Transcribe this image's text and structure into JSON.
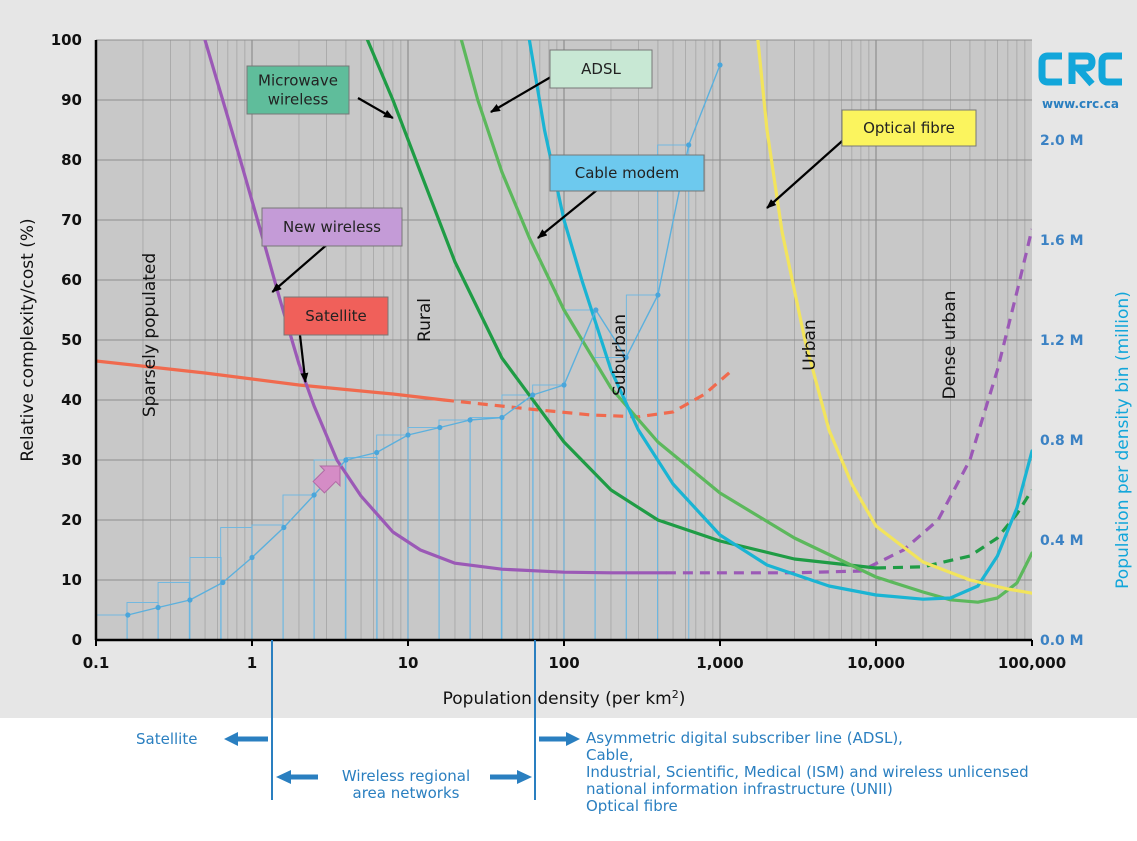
{
  "chart_data": {
    "type": "line",
    "xlabel": "Population density (per km²)",
    "ylabel": "Relative complexity/cost (%)",
    "y2label": "Population per density bin (million)",
    "x_scale": "log",
    "xlim": [
      0.1,
      100000
    ],
    "ylim": [
      0,
      100
    ],
    "y2lim": [
      0,
      2.4
    ],
    "x_ticks": [
      "0.1",
      "1",
      "10",
      "100",
      "1,000",
      "10,000",
      "100,000"
    ],
    "y_ticks": [
      "0",
      "10",
      "20",
      "30",
      "40",
      "50",
      "60",
      "70",
      "80",
      "90",
      "100"
    ],
    "y2_ticks": [
      "0.0 M",
      "0.4 M",
      "0.8 M",
      "1.2 M",
      "1.6 M",
      "2.0 M"
    ],
    "grid": true,
    "zones": [
      "Sparsely populated",
      "Rural",
      "Suburban",
      "Urban",
      "Dense urban"
    ],
    "series": [
      {
        "name": "Satellite",
        "color": "#f06a4e",
        "points": [
          [
            0.1,
            46.5
          ],
          [
            0.5,
            44.5
          ],
          [
            2,
            42.5
          ],
          [
            8,
            41
          ],
          [
            17,
            40
          ]
        ],
        "dashed_points": [
          [
            17,
            40
          ],
          [
            60,
            38.5
          ],
          [
            150,
            37.5
          ],
          [
            300,
            37.2
          ],
          [
            500,
            38
          ],
          [
            800,
            41
          ],
          [
            1200,
            45
          ]
        ]
      },
      {
        "name": "New wireless",
        "color": "#9b59b6",
        "points": [
          [
            0.5,
            100
          ],
          [
            0.8,
            82
          ],
          [
            1.2,
            66
          ],
          [
            1.5,
            57
          ],
          [
            2,
            46
          ],
          [
            2.5,
            39
          ],
          [
            3.5,
            30
          ],
          [
            5,
            24
          ],
          [
            8,
            18
          ],
          [
            12,
            15
          ],
          [
            20,
            12.8
          ],
          [
            40,
            11.8
          ],
          [
            100,
            11.3
          ],
          [
            200,
            11.2
          ],
          [
            450,
            11.2
          ]
        ],
        "dashed_points": [
          [
            450,
            11.2
          ],
          [
            1000,
            11.2
          ],
          [
            3000,
            11.2
          ],
          [
            8000,
            11.5
          ],
          [
            15000,
            15
          ],
          [
            25000,
            20
          ],
          [
            40000,
            30
          ],
          [
            60000,
            45
          ],
          [
            80000,
            58
          ],
          [
            100000,
            68.5
          ]
        ]
      },
      {
        "name": "Microwave wireless",
        "color": "#1f9c45",
        "points": [
          [
            5.5,
            100
          ],
          [
            8,
            90
          ],
          [
            12,
            78
          ],
          [
            20,
            63
          ],
          [
            40,
            47
          ],
          [
            100,
            33
          ],
          [
            200,
            25
          ],
          [
            400,
            20
          ],
          [
            1000,
            16.5
          ],
          [
            3000,
            13.5
          ],
          [
            10000,
            12
          ]
        ],
        "dashed_points": [
          [
            10000,
            12
          ],
          [
            20000,
            12.2
          ],
          [
            40000,
            14
          ],
          [
            60000,
            17
          ],
          [
            80000,
            21
          ],
          [
            100000,
            25
          ]
        ]
      },
      {
        "name": "ADSL",
        "color": "#5cb85c",
        "points": [
          [
            22,
            100
          ],
          [
            28,
            90
          ],
          [
            40,
            78
          ],
          [
            60,
            67
          ],
          [
            100,
            55
          ],
          [
            200,
            42
          ],
          [
            400,
            33
          ],
          [
            1000,
            24.5
          ],
          [
            3000,
            17
          ],
          [
            10000,
            10.5
          ],
          [
            20000,
            8
          ],
          [
            30000,
            6.7
          ],
          [
            45000,
            6.3
          ],
          [
            60000,
            7
          ],
          [
            80000,
            9.5
          ],
          [
            100000,
            14.5
          ]
        ]
      },
      {
        "name": "Cable modem",
        "color": "#1ab4d3",
        "points": [
          [
            60,
            100
          ],
          [
            75,
            85
          ],
          [
            100,
            70
          ],
          [
            130,
            60
          ],
          [
            200,
            45
          ],
          [
            300,
            35
          ],
          [
            500,
            26
          ],
          [
            1000,
            17.5
          ],
          [
            2000,
            12.5
          ],
          [
            5000,
            9
          ],
          [
            10000,
            7.5
          ],
          [
            20000,
            6.8
          ],
          [
            30000,
            7
          ],
          [
            45000,
            9
          ],
          [
            60000,
            14
          ],
          [
            80000,
            22
          ],
          [
            100000,
            31.5
          ]
        ]
      },
      {
        "name": "Optical fibre",
        "color": "#f2e45c",
        "points": [
          [
            1750,
            100
          ],
          [
            2000,
            85
          ],
          [
            2500,
            68
          ],
          [
            3500,
            50
          ],
          [
            5000,
            35
          ],
          [
            7000,
            26
          ],
          [
            10000,
            19
          ],
          [
            20000,
            13
          ],
          [
            40000,
            10
          ],
          [
            70000,
            8.5
          ],
          [
            100000,
            7.8
          ]
        ]
      },
      {
        "name": "Population per density bin",
        "color": "#5bb0dd",
        "axis": "right",
        "points": [
          [
            0.16,
            0.1
          ],
          [
            0.25,
            0.13
          ],
          [
            0.4,
            0.16
          ],
          [
            0.65,
            0.23
          ],
          [
            1,
            0.33
          ],
          [
            1.6,
            0.45
          ],
          [
            2.5,
            0.58
          ],
          [
            4,
            0.72
          ],
          [
            6.3,
            0.75
          ],
          [
            10,
            0.82
          ],
          [
            16,
            0.85
          ],
          [
            25,
            0.88
          ],
          [
            40,
            0.89
          ],
          [
            63,
            0.98
          ],
          [
            100,
            1.02
          ],
          [
            160,
            1.32
          ],
          [
            250,
            1.13
          ],
          [
            400,
            1.38
          ],
          [
            630,
            1.98
          ],
          [
            1000,
            2.3
          ]
        ],
        "bins": [
          [
            0.1,
            0.1
          ],
          [
            0.158,
            0.15
          ],
          [
            0.25,
            0.23
          ],
          [
            0.4,
            0.33
          ],
          [
            0.63,
            0.45
          ],
          [
            1,
            0.46
          ],
          [
            1.58,
            0.58
          ],
          [
            2.5,
            0.72
          ],
          [
            4,
            0.73
          ],
          [
            6.3,
            0.82
          ],
          [
            10,
            0.85
          ],
          [
            15.8,
            0.88
          ],
          [
            25,
            0.89
          ],
          [
            40,
            0.98
          ],
          [
            63,
            1.02
          ],
          [
            100,
            1.32
          ],
          [
            158,
            1.13
          ],
          [
            251,
            1.38
          ],
          [
            398,
            1.98
          ]
        ]
      }
    ],
    "callouts": [
      {
        "label": "Microwave\nwireless",
        "target": [
          8,
          87
        ],
        "fill": "#5fbd9b"
      },
      {
        "label": "ADSL",
        "target": [
          34,
          88
        ],
        "fill": "#c8e8d4"
      },
      {
        "label": "Optical fibre",
        "target": [
          2000,
          72
        ],
        "fill": "#fbf45e"
      },
      {
        "label": "Cable  modem",
        "target": [
          68,
          67
        ],
        "fill": "#6dc9ee"
      },
      {
        "label": "New wireless",
        "target": [
          1.35,
          58
        ],
        "fill": "#c49bd7"
      },
      {
        "label": "Satellite",
        "target": [
          2.2,
          43
        ],
        "fill": "#f0605a"
      }
    ],
    "logo": "www.crc.ca"
  },
  "bottom": {
    "satellite": "Satellite",
    "wran": [
      "Wireless regional",
      "area networks"
    ],
    "right": [
      "Asymmetric digital subscriber line (ADSL),",
      "Cable,",
      "Industrial, Scientific, Medical (ISM) and wireless unlicensed",
      "national information infrastructure (UNII)",
      "Optical fibre"
    ]
  }
}
